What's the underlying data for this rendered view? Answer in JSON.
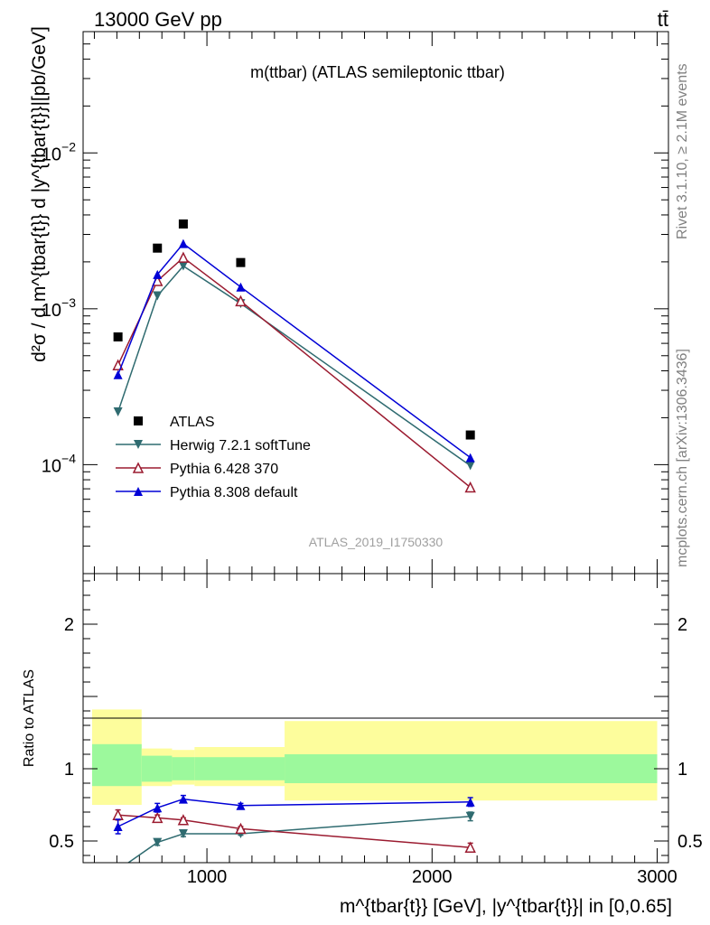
{
  "header": {
    "left": "13000 GeV pp",
    "right": "tt̄"
  },
  "side_text": {
    "rivet": "Rivet 3.1.10, ≥ 2.1M events",
    "mcplots": "mcplots.cern.ch [arXiv:1306.3436]"
  },
  "colors": {
    "atlas": "#000000",
    "herwig": "#2f6b70",
    "pythia6": "#9b1b30",
    "pythia8": "#0000d6",
    "band_inner": "#9cf99c",
    "band_outer": "#fdfd9c"
  },
  "chart_data": [
    {
      "type": "scatter",
      "title": "m(ttbar) (ATLAS semileptonic ttbar)",
      "watermark": "ATLAS_2019_I1750330",
      "ylabel": "d²σ / d m^{tbar{t}} d |y^{tbar{t}}|[pb/GeV]",
      "yscale": "log",
      "ylim": [
        2e-05,
        0.06
      ],
      "xlim": [
        450,
        3050
      ],
      "y_ticks": [
        {
          "value": 0.0001,
          "base": "10",
          "exp": "−4"
        },
        {
          "value": 0.001,
          "base": "10",
          "exp": "−3"
        },
        {
          "value": 0.01,
          "base": "10",
          "exp": "−2"
        }
      ],
      "legend_position": "center-left",
      "x": [
        605,
        780,
        895,
        1150,
        2170
      ],
      "series": [
        {
          "name": "ATLAS",
          "marker": "square",
          "values": [
            0.00066,
            0.00245,
            0.0035,
            0.00198,
            0.000155
          ]
        },
        {
          "name": "Herwig 7.2.1 softTune",
          "marker": "triangle-down",
          "values": [
            0.000218,
            0.00121,
            0.00188,
            0.00108,
            9.85e-05
          ]
        },
        {
          "name": "Pythia 6.428 370",
          "marker": "triangle-up-open",
          "values": [
            0.000435,
            0.00151,
            0.00213,
            0.00112,
            7.15e-05
          ]
        },
        {
          "name": "Pythia 8.308 default",
          "marker": "triangle-up",
          "values": [
            0.000378,
            0.00166,
            0.00262,
            0.00138,
            0.000111
          ]
        }
      ]
    },
    {
      "type": "line",
      "ylabel": "Ratio to ATLAS",
      "xlabel": "m^{tbar{t}} [GeV], |y^{tbar{t}}| in [0,0.65]",
      "xlim": [
        450,
        3050
      ],
      "ylim": [
        0.35,
        2.35
      ],
      "x_ticks": [
        1000,
        2000,
        3000
      ],
      "x_tick_labels": [
        "1000",
        "2000",
        "3000"
      ],
      "y_ticks": [
        0.5,
        1,
        2
      ],
      "y_tick_labels": [
        "0.5",
        "1",
        "2"
      ],
      "x": [
        605,
        780,
        895,
        1150,
        2170
      ],
      "uncertainty_bands": [
        {
          "x_range": [
            490,
            710
          ],
          "inner": [
            0.88,
            1.17
          ],
          "outer": [
            0.75,
            1.41
          ]
        },
        {
          "x_range": [
            710,
            845
          ],
          "inner": [
            0.91,
            1.09
          ],
          "outer": [
            0.88,
            1.14
          ]
        },
        {
          "x_range": [
            845,
            945
          ],
          "inner": [
            0.92,
            1.08
          ],
          "outer": [
            0.89,
            1.13
          ]
        },
        {
          "x_range": [
            945,
            1345
          ],
          "inner": [
            0.92,
            1.08
          ],
          "outer": [
            0.88,
            1.15
          ]
        },
        {
          "x_range": [
            1345,
            3000
          ],
          "inner": [
            0.9,
            1.1
          ],
          "outer": [
            0.78,
            1.33
          ]
        }
      ],
      "series": [
        {
          "name": "Herwig 7.2.1 softTune",
          "values": [
            0.3,
            0.49,
            0.55,
            0.55,
            0.67
          ],
          "errors": [
            0.02,
            0.02,
            0.02,
            0.01,
            0.03
          ]
        },
        {
          "name": "Pythia 6.428 370",
          "values": [
            0.68,
            0.66,
            0.645,
            0.585,
            0.455
          ],
          "errors": [
            0.035,
            0.02,
            0.015,
            0.015,
            0.03
          ]
        },
        {
          "name": "Pythia 8.308 default",
          "values": [
            0.6,
            0.73,
            0.79,
            0.745,
            0.77
          ],
          "errors": [
            0.05,
            0.03,
            0.025,
            0.015,
            0.03
          ]
        }
      ]
    }
  ]
}
